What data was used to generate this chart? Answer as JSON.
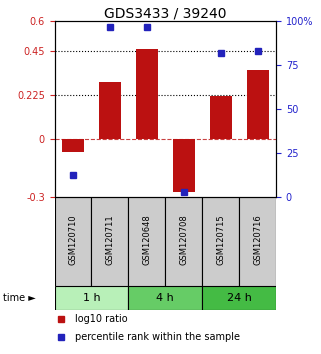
{
  "title": "GDS3433 / 39240",
  "samples": [
    "GSM120710",
    "GSM120711",
    "GSM120648",
    "GSM120708",
    "GSM120715",
    "GSM120716"
  ],
  "log10_ratio": [
    -0.07,
    0.29,
    0.46,
    -0.27,
    0.22,
    0.35
  ],
  "percentile_rank": [
    13,
    97,
    97,
    3,
    82,
    83
  ],
  "groups": [
    {
      "label": "1 h",
      "indices": [
        0,
        1
      ],
      "color": "#b8f0b8"
    },
    {
      "label": "4 h",
      "indices": [
        2,
        3
      ],
      "color": "#66cc66"
    },
    {
      "label": "24 h",
      "indices": [
        4,
        5
      ],
      "color": "#44bb44"
    }
  ],
  "ylim_left": [
    -0.3,
    0.6
  ],
  "ylim_right": [
    0,
    100
  ],
  "yticks_left": [
    -0.3,
    0,
    0.225,
    0.45,
    0.6
  ],
  "yticks_right": [
    0,
    25,
    50,
    75,
    100
  ],
  "bar_color": "#bb1111",
  "point_color": "#2222bb",
  "title_fontsize": 10,
  "axis_label_color_left": "#cc2222",
  "axis_label_color_right": "#2222cc",
  "bar_width": 0.6,
  "label_bg": "#cccccc",
  "legend_red_label": "log10 ratio",
  "legend_blue_label": "percentile rank within the sample",
  "time_label": "time ►"
}
